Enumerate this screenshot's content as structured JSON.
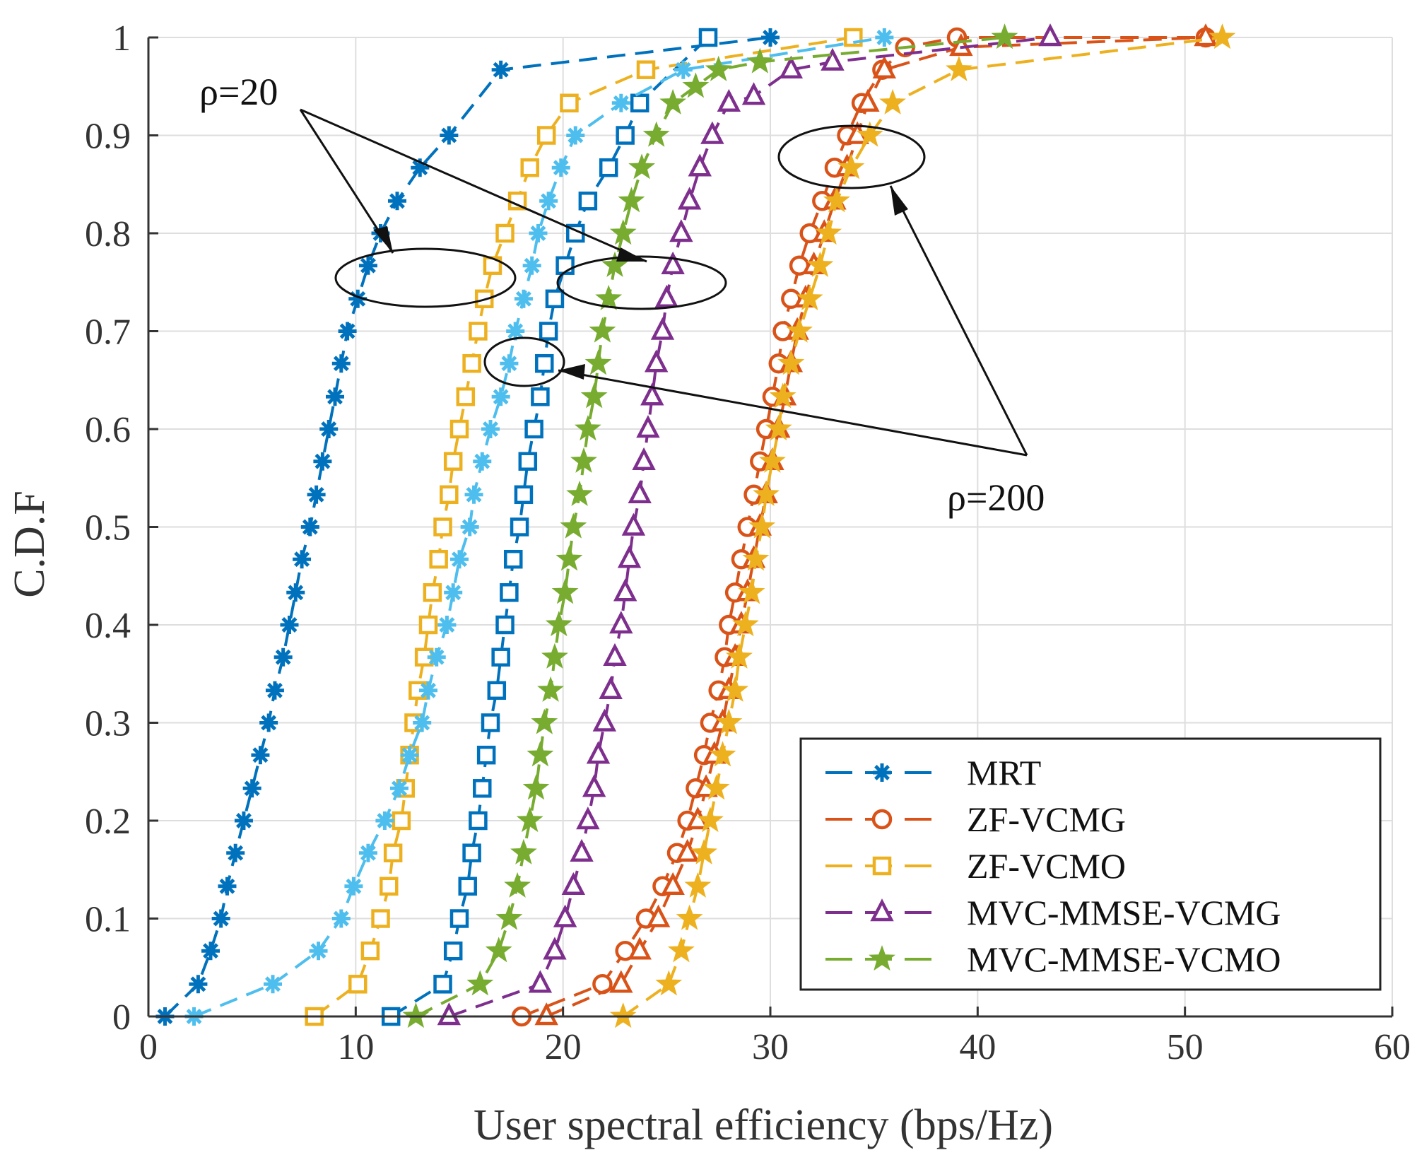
{
  "chart_data": {
    "type": "line",
    "title": "",
    "xlabel": "User spectral efficiency (bps/Hz)",
    "ylabel": "C.D.F",
    "xlim": [
      0,
      60
    ],
    "ylim": [
      0,
      1
    ],
    "xticks": [
      "0",
      "10",
      "20",
      "30",
      "40",
      "50",
      "60"
    ],
    "yticks": [
      "0",
      "0.1",
      "0.2",
      "0.3",
      "0.4",
      "0.5",
      "0.6",
      "0.7",
      "0.8",
      "0.9",
      "1"
    ],
    "grid": true,
    "legend_position": "bottom-right",
    "annotations": [
      {
        "text": "ρ=20",
        "points_to": [
          "MRT / ZF-VCMO (ρ=20) group near CDF 0.75",
          "MVC-MMSE group near CDF 0.75"
        ]
      },
      {
        "text": "ρ=200",
        "points_to": [
          "MRT / ZF-VCMO (ρ=200) group near CDF 0.67",
          "ZF / MVC-MMSE group near CDF 0.88"
        ]
      }
    ],
    "series": [
      {
        "name": "MRT",
        "group": "rho20",
        "color": "#0072BD",
        "marker": "asterisk",
        "x": [
          0.8,
          2.4,
          3.0,
          3.5,
          3.8,
          4.2,
          4.6,
          5.0,
          5.4,
          5.8,
          6.1,
          6.5,
          6.8,
          7.1,
          7.4,
          7.8,
          8.1,
          8.4,
          8.7,
          9.0,
          9.3,
          9.6,
          10.1,
          10.6,
          11.2,
          12.0,
          13.1,
          14.5,
          17.0,
          30.0
        ],
        "y": [
          0.0,
          0.033,
          0.067,
          0.1,
          0.133,
          0.167,
          0.2,
          0.233,
          0.267,
          0.3,
          0.333,
          0.367,
          0.4,
          0.433,
          0.467,
          0.5,
          0.533,
          0.567,
          0.6,
          0.633,
          0.667,
          0.7,
          0.733,
          0.767,
          0.8,
          0.833,
          0.867,
          0.9,
          0.967,
          1.0
        ]
      },
      {
        "name": "MRT (ρ=200)",
        "legend": false,
        "group": "rho200",
        "color": "#0072BD",
        "marker": "square",
        "x": [
          11.7,
          14.2,
          14.7,
          15.0,
          15.4,
          15.6,
          15.9,
          16.1,
          16.3,
          16.5,
          16.8,
          17.0,
          17.2,
          17.4,
          17.6,
          17.9,
          18.1,
          18.3,
          18.6,
          18.9,
          19.1,
          19.3,
          19.6,
          20.1,
          20.6,
          21.2,
          22.2,
          23.0,
          23.7,
          27.0
        ],
        "y": [
          0.0,
          0.033,
          0.067,
          0.1,
          0.133,
          0.167,
          0.2,
          0.233,
          0.267,
          0.3,
          0.333,
          0.367,
          0.4,
          0.433,
          0.467,
          0.5,
          0.533,
          0.567,
          0.6,
          0.633,
          0.667,
          0.7,
          0.733,
          0.767,
          0.8,
          0.833,
          0.867,
          0.9,
          0.933,
          1.0
        ]
      },
      {
        "name": "ZF-VCMO",
        "group": "rho20",
        "color": "#EDB120",
        "marker": "square",
        "x": [
          8.0,
          10.1,
          10.7,
          11.2,
          11.6,
          11.8,
          12.2,
          12.4,
          12.6,
          12.8,
          13.0,
          13.3,
          13.5,
          13.7,
          14.0,
          14.2,
          14.5,
          14.7,
          15.0,
          15.3,
          15.6,
          15.9,
          16.2,
          16.6,
          17.2,
          17.8,
          18.4,
          19.2,
          20.3,
          24.0,
          34.0
        ],
        "y": [
          0.0,
          0.033,
          0.067,
          0.1,
          0.133,
          0.167,
          0.2,
          0.233,
          0.267,
          0.3,
          0.333,
          0.367,
          0.4,
          0.433,
          0.467,
          0.5,
          0.533,
          0.567,
          0.6,
          0.633,
          0.667,
          0.7,
          0.733,
          0.767,
          0.8,
          0.833,
          0.867,
          0.9,
          0.933,
          0.967,
          1.0
        ]
      },
      {
        "name": "ZF-VCMO (ρ=200)",
        "legend": false,
        "group": "rho200",
        "color": "#4DBEEE",
        "marker": "asterisk",
        "x": [
          2.2,
          6.0,
          8.2,
          9.3,
          9.9,
          10.6,
          11.4,
          12.1,
          12.6,
          13.2,
          13.5,
          13.9,
          14.4,
          14.7,
          15.0,
          15.5,
          15.7,
          16.1,
          16.5,
          17.0,
          17.4,
          17.7,
          18.1,
          18.5,
          18.8,
          19.3,
          19.9,
          20.6,
          22.8,
          25.8,
          35.5
        ],
        "y": [
          0.0,
          0.033,
          0.067,
          0.1,
          0.133,
          0.167,
          0.2,
          0.233,
          0.267,
          0.3,
          0.333,
          0.367,
          0.4,
          0.433,
          0.467,
          0.5,
          0.533,
          0.567,
          0.6,
          0.633,
          0.667,
          0.7,
          0.733,
          0.767,
          0.8,
          0.833,
          0.867,
          0.9,
          0.933,
          0.967,
          1.0
        ]
      },
      {
        "name": "ZF-VCMG",
        "group": "rho200",
        "color": "#D95319",
        "marker": "circle",
        "x": [
          18.0,
          21.9,
          23.0,
          24.0,
          24.8,
          25.5,
          26.0,
          26.4,
          26.8,
          27.1,
          27.5,
          27.8,
          28.0,
          28.3,
          28.6,
          28.9,
          29.2,
          29.5,
          29.8,
          30.1,
          30.4,
          30.6,
          31.0,
          31.4,
          31.9,
          32.5,
          33.1,
          33.7,
          34.4,
          35.4,
          36.5,
          39.0,
          51.0
        ],
        "y": [
          0.0,
          0.033,
          0.067,
          0.1,
          0.133,
          0.167,
          0.2,
          0.233,
          0.267,
          0.3,
          0.333,
          0.367,
          0.4,
          0.433,
          0.467,
          0.5,
          0.533,
          0.567,
          0.6,
          0.633,
          0.667,
          0.7,
          0.733,
          0.767,
          0.8,
          0.833,
          0.867,
          0.9,
          0.933,
          0.967,
          0.99,
          1.0,
          1.0
        ]
      },
      {
        "name": "ZF-VCMG (ρ=200) triangle",
        "legend": false,
        "group": "rho200",
        "color": "#D95319",
        "marker": "triangle",
        "x": [
          19.2,
          22.8,
          23.7,
          24.6,
          25.3,
          26.0,
          26.5,
          26.9,
          27.3,
          27.7,
          28.0,
          28.3,
          28.6,
          28.9,
          29.2,
          29.5,
          29.8,
          30.1,
          30.4,
          30.7,
          31.0,
          31.3,
          31.7,
          32.1,
          32.6,
          33.1,
          33.7,
          34.2,
          34.7,
          35.5,
          39.2,
          51.0
        ],
        "y": [
          0.0,
          0.033,
          0.067,
          0.1,
          0.133,
          0.167,
          0.2,
          0.233,
          0.267,
          0.3,
          0.333,
          0.367,
          0.4,
          0.433,
          0.467,
          0.5,
          0.533,
          0.567,
          0.6,
          0.633,
          0.667,
          0.7,
          0.733,
          0.767,
          0.8,
          0.833,
          0.867,
          0.9,
          0.933,
          0.967,
          0.99,
          1.0
        ]
      },
      {
        "name": "ZF-VCMO (ρ=200) star",
        "legend": false,
        "group": "rho200",
        "color": "#EDB120",
        "marker": "star",
        "x": [
          22.9,
          25.1,
          25.7,
          26.1,
          26.5,
          26.8,
          27.1,
          27.4,
          27.7,
          28.0,
          28.3,
          28.5,
          28.8,
          29.1,
          29.3,
          29.6,
          29.8,
          30.1,
          30.4,
          30.6,
          31.0,
          31.4,
          31.9,
          32.4,
          32.8,
          33.2,
          33.9,
          34.8,
          35.9,
          39.1,
          51.8
        ],
        "y": [
          0.0,
          0.033,
          0.067,
          0.1,
          0.133,
          0.167,
          0.2,
          0.233,
          0.267,
          0.3,
          0.333,
          0.367,
          0.4,
          0.433,
          0.467,
          0.5,
          0.533,
          0.567,
          0.6,
          0.633,
          0.667,
          0.7,
          0.733,
          0.767,
          0.8,
          0.833,
          0.867,
          0.9,
          0.933,
          0.967,
          1.0
        ]
      },
      {
        "name": "MVC-MMSE-VCMG",
        "group": "rho20",
        "color": "#7E2F8E",
        "marker": "triangle",
        "x": [
          14.5,
          18.9,
          19.6,
          20.1,
          20.5,
          20.9,
          21.2,
          21.5,
          21.7,
          22.0,
          22.3,
          22.5,
          22.8,
          23.0,
          23.2,
          23.4,
          23.7,
          23.9,
          24.1,
          24.3,
          24.5,
          24.8,
          25.0,
          25.3,
          25.7,
          26.1,
          26.6,
          27.2,
          28.0,
          29.2,
          31.0,
          33.0,
          43.5
        ],
        "y": [
          0.0,
          0.033,
          0.067,
          0.1,
          0.133,
          0.167,
          0.2,
          0.233,
          0.267,
          0.3,
          0.333,
          0.367,
          0.4,
          0.433,
          0.467,
          0.5,
          0.533,
          0.567,
          0.6,
          0.633,
          0.667,
          0.7,
          0.733,
          0.767,
          0.8,
          0.833,
          0.867,
          0.9,
          0.933,
          0.94,
          0.967,
          0.975,
          1.0
        ]
      },
      {
        "name": "MVC-MMSE-VCMO",
        "group": "rho20",
        "color": "#77AC30",
        "marker": "star",
        "x": [
          12.9,
          16.0,
          16.9,
          17.4,
          17.8,
          18.1,
          18.4,
          18.7,
          18.9,
          19.1,
          19.4,
          19.6,
          19.8,
          20.1,
          20.3,
          20.5,
          20.8,
          21.0,
          21.2,
          21.5,
          21.7,
          21.9,
          22.2,
          22.5,
          22.9,
          23.3,
          23.8,
          24.5,
          25.3,
          26.4,
          27.5,
          29.5,
          41.3
        ],
        "y": [
          0.0,
          0.033,
          0.067,
          0.1,
          0.133,
          0.167,
          0.2,
          0.233,
          0.267,
          0.3,
          0.333,
          0.367,
          0.4,
          0.433,
          0.467,
          0.5,
          0.533,
          0.567,
          0.6,
          0.633,
          0.667,
          0.7,
          0.733,
          0.767,
          0.8,
          0.833,
          0.867,
          0.9,
          0.933,
          0.95,
          0.967,
          0.975,
          1.0
        ]
      }
    ],
    "legend_entries": [
      {
        "label": "MRT",
        "color": "#0072BD",
        "marker": "asterisk"
      },
      {
        "label": "ZF-VCMG",
        "color": "#D95319",
        "marker": "circle"
      },
      {
        "label": "ZF-VCMO",
        "color": "#EDB120",
        "marker": "square"
      },
      {
        "label": "MVC-MMSE-VCMG",
        "color": "#7E2F8E",
        "marker": "triangle"
      },
      {
        "label": "MVC-MMSE-VCMO",
        "color": "#77AC30",
        "marker": "star"
      }
    ]
  }
}
